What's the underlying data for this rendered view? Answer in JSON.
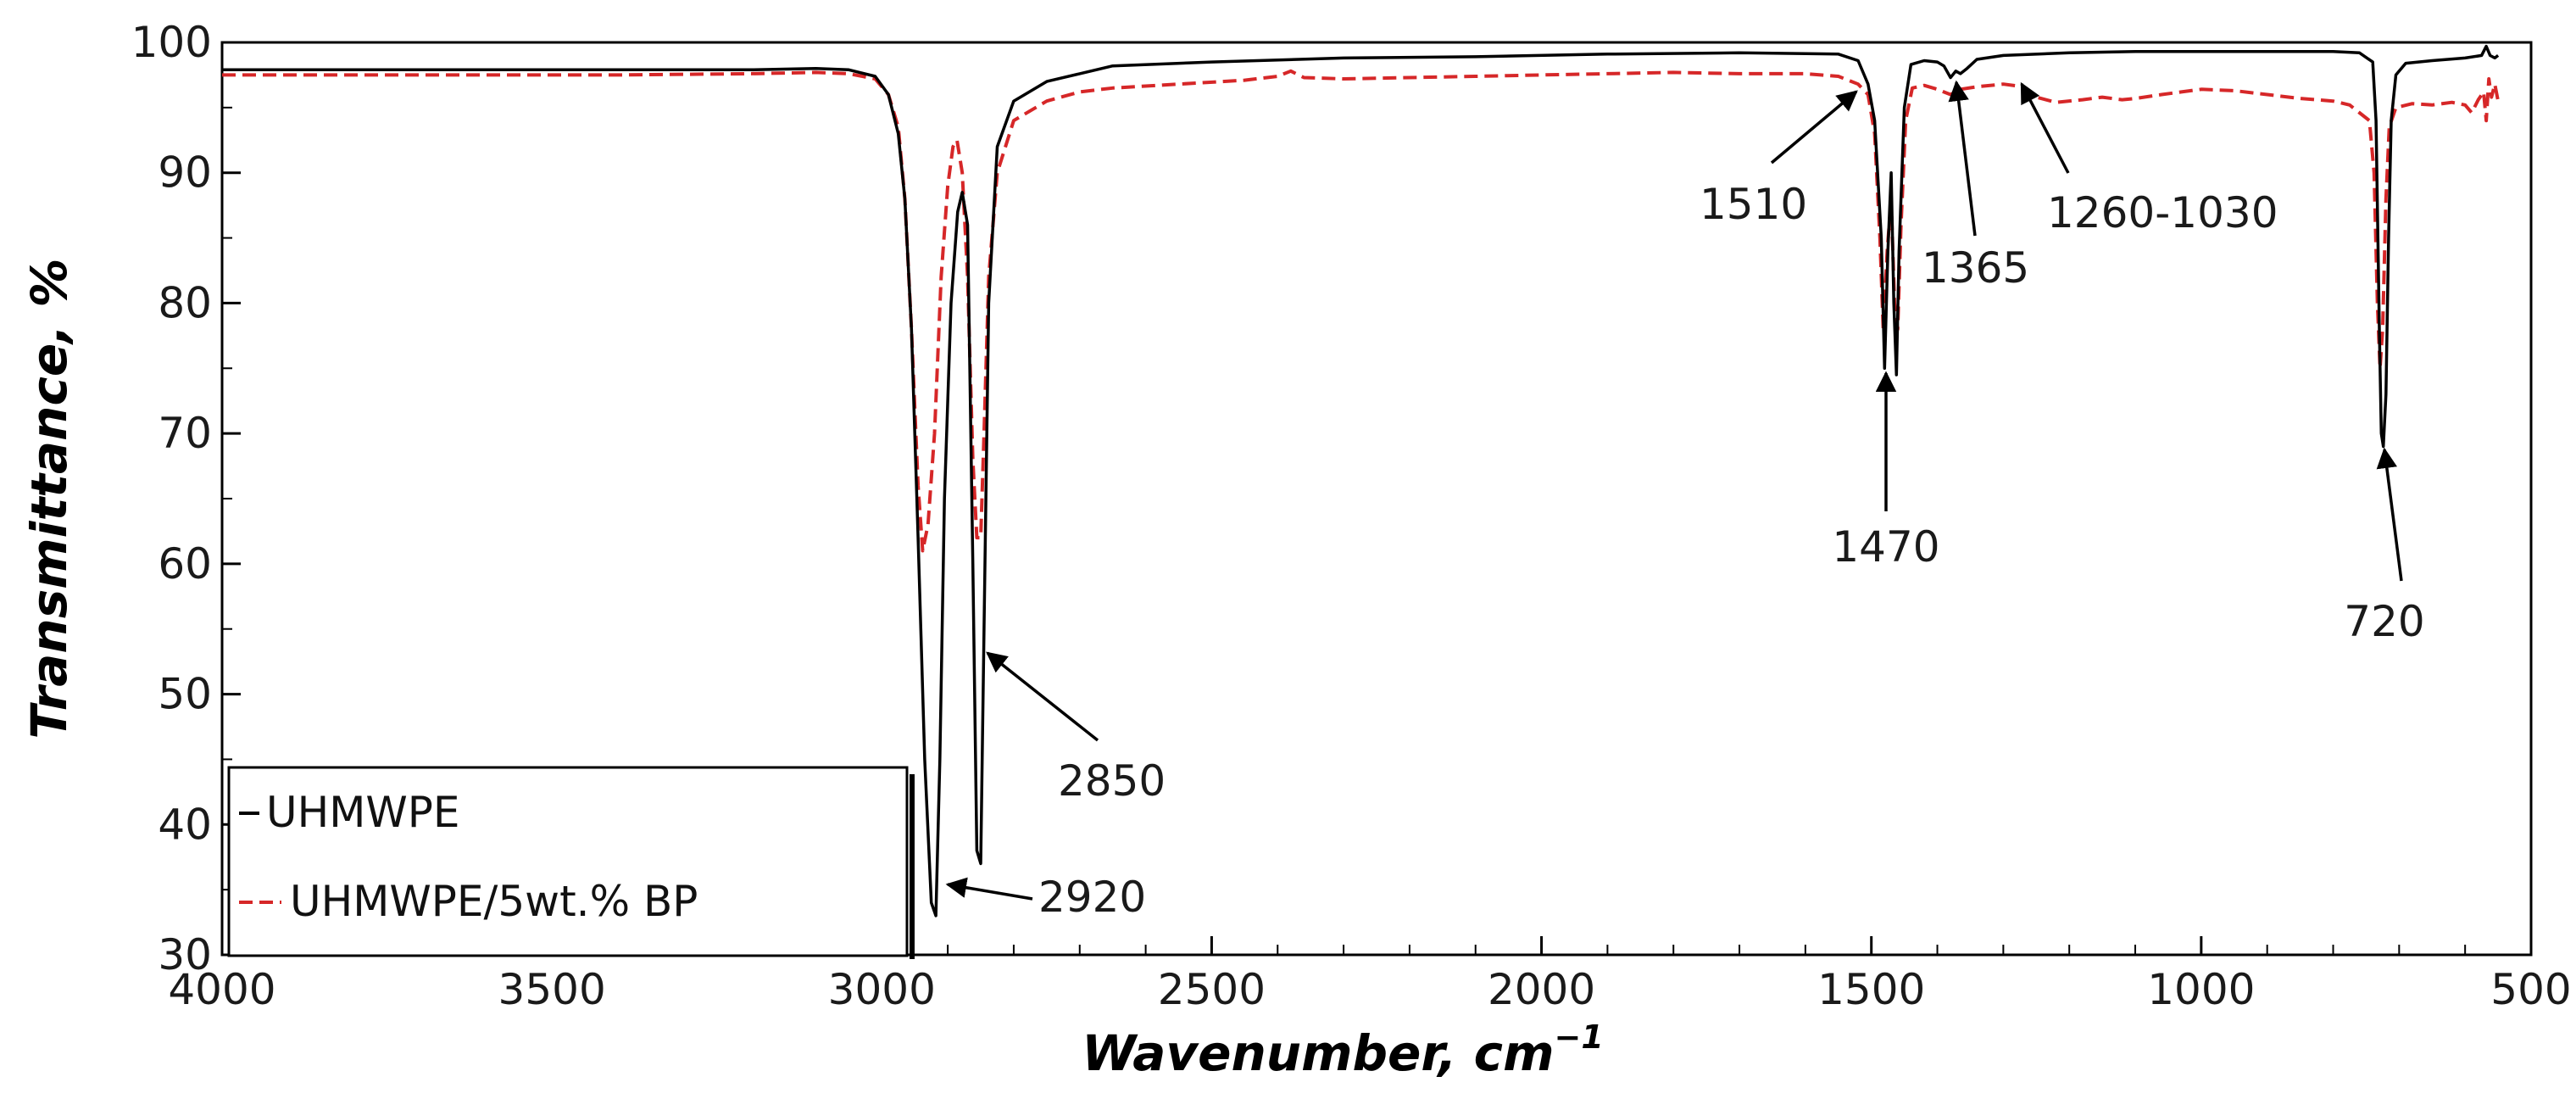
{
  "chart_data": {
    "type": "line",
    "xlabel": "Wavenumber, cm",
    "xlabel_sup": "−1",
    "ylabel": "Transmittance, %",
    "xlim": [
      4000,
      500
    ],
    "ylim": [
      30,
      100
    ],
    "x_reversed": true,
    "x_ticks": [
      4000,
      3500,
      3000,
      2500,
      2000,
      1500,
      1000,
      500
    ],
    "y_ticks": [
      30,
      40,
      50,
      60,
      70,
      80,
      90,
      100
    ],
    "grid": false,
    "legend_position": "bottom-left",
    "series": [
      {
        "name": "UHMWPE",
        "color": "#000000",
        "dash": "solid",
        "points": [
          [
            4000,
            97.9
          ],
          [
            3800,
            97.9
          ],
          [
            3600,
            97.9
          ],
          [
            3400,
            97.9
          ],
          [
            3200,
            97.9
          ],
          [
            3100,
            98.0
          ],
          [
            3050,
            97.9
          ],
          [
            3010,
            97.4
          ],
          [
            2990,
            96.0
          ],
          [
            2975,
            93.0
          ],
          [
            2965,
            88.0
          ],
          [
            2955,
            78.0
          ],
          [
            2945,
            62.0
          ],
          [
            2935,
            45.0
          ],
          [
            2925,
            34.0
          ],
          [
            2918,
            33.0
          ],
          [
            2912,
            45.0
          ],
          [
            2905,
            65.0
          ],
          [
            2895,
            80.0
          ],
          [
            2885,
            87.0
          ],
          [
            2878,
            88.5
          ],
          [
            2870,
            86.0
          ],
          [
            2862,
            60.0
          ],
          [
            2856,
            38.0
          ],
          [
            2850,
            37.0
          ],
          [
            2845,
            55.0
          ],
          [
            2838,
            80.0
          ],
          [
            2825,
            92.0
          ],
          [
            2800,
            95.5
          ],
          [
            2750,
            97.0
          ],
          [
            2700,
            97.6
          ],
          [
            2650,
            98.2
          ],
          [
            2500,
            98.5
          ],
          [
            2300,
            98.8
          ],
          [
            2100,
            98.9
          ],
          [
            1900,
            99.1
          ],
          [
            1700,
            99.2
          ],
          [
            1550,
            99.1
          ],
          [
            1520,
            98.6
          ],
          [
            1505,
            96.8
          ],
          [
            1495,
            94.0
          ],
          [
            1485,
            85.0
          ],
          [
            1480,
            75.0
          ],
          [
            1475,
            84.0
          ],
          [
            1470,
            90.0
          ],
          [
            1466,
            80.0
          ],
          [
            1462,
            74.5
          ],
          [
            1458,
            84.0
          ],
          [
            1450,
            95.0
          ],
          [
            1440,
            98.3
          ],
          [
            1420,
            98.6
          ],
          [
            1400,
            98.5
          ],
          [
            1390,
            98.2
          ],
          [
            1380,
            97.3
          ],
          [
            1372,
            97.8
          ],
          [
            1365,
            97.6
          ],
          [
            1355,
            98.0
          ],
          [
            1340,
            98.7
          ],
          [
            1300,
            99.0
          ],
          [
            1200,
            99.2
          ],
          [
            1100,
            99.3
          ],
          [
            1000,
            99.3
          ],
          [
            900,
            99.3
          ],
          [
            800,
            99.3
          ],
          [
            760,
            99.2
          ],
          [
            740,
            98.5
          ],
          [
            735,
            94.0
          ],
          [
            730,
            78.0
          ],
          [
            727,
            70.0
          ],
          [
            724,
            69.0
          ],
          [
            720,
            73.0
          ],
          [
            716,
            85.0
          ],
          [
            712,
            94.0
          ],
          [
            705,
            97.5
          ],
          [
            690,
            98.4
          ],
          [
            650,
            98.6
          ],
          [
            600,
            98.8
          ],
          [
            575,
            99.0
          ],
          [
            568,
            99.7
          ],
          [
            562,
            99.0
          ],
          [
            555,
            98.8
          ],
          [
            550,
            99.0
          ]
        ]
      },
      {
        "name": "UHMWPE/5wt.% BP",
        "color": "#d62728",
        "dash": "dashed",
        "points": [
          [
            4000,
            97.5
          ],
          [
            3800,
            97.5
          ],
          [
            3600,
            97.5
          ],
          [
            3400,
            97.5
          ],
          [
            3200,
            97.6
          ],
          [
            3100,
            97.7
          ],
          [
            3050,
            97.6
          ],
          [
            3010,
            97.2
          ],
          [
            2990,
            96.0
          ],
          [
            2975,
            93.5
          ],
          [
            2965,
            88.0
          ],
          [
            2955,
            78.0
          ],
          [
            2945,
            66.0
          ],
          [
            2938,
            61.0
          ],
          [
            2930,
            63.0
          ],
          [
            2920,
            70.0
          ],
          [
            2910,
            82.0
          ],
          [
            2900,
            89.0
          ],
          [
            2892,
            92.0
          ],
          [
            2886,
            92.5
          ],
          [
            2878,
            90.0
          ],
          [
            2870,
            82.0
          ],
          [
            2862,
            68.0
          ],
          [
            2856,
            62.0
          ],
          [
            2850,
            62.0
          ],
          [
            2845,
            70.0
          ],
          [
            2838,
            82.0
          ],
          [
            2825,
            90.0
          ],
          [
            2800,
            94.0
          ],
          [
            2750,
            95.5
          ],
          [
            2700,
            96.2
          ],
          [
            2650,
            96.5
          ],
          [
            2550,
            96.8
          ],
          [
            2450,
            97.1
          ],
          [
            2400,
            97.4
          ],
          [
            2380,
            97.8
          ],
          [
            2360,
            97.3
          ],
          [
            2300,
            97.2
          ],
          [
            2200,
            97.3
          ],
          [
            2100,
            97.4
          ],
          [
            2000,
            97.5
          ],
          [
            1900,
            97.6
          ],
          [
            1800,
            97.7
          ],
          [
            1700,
            97.6
          ],
          [
            1600,
            97.6
          ],
          [
            1550,
            97.4
          ],
          [
            1520,
            96.8
          ],
          [
            1505,
            96.0
          ],
          [
            1495,
            93.0
          ],
          [
            1487,
            85.0
          ],
          [
            1482,
            78.0
          ],
          [
            1476,
            84.0
          ],
          [
            1470,
            88.0
          ],
          [
            1465,
            80.0
          ],
          [
            1460,
            78.0
          ],
          [
            1455,
            86.0
          ],
          [
            1448,
            94.0
          ],
          [
            1438,
            96.5
          ],
          [
            1420,
            96.7
          ],
          [
            1400,
            96.4
          ],
          [
            1380,
            96.0
          ],
          [
            1365,
            96.4
          ],
          [
            1340,
            96.6
          ],
          [
            1300,
            96.8
          ],
          [
            1270,
            96.6
          ],
          [
            1250,
            95.8
          ],
          [
            1220,
            95.4
          ],
          [
            1180,
            95.6
          ],
          [
            1150,
            95.8
          ],
          [
            1120,
            95.6
          ],
          [
            1100,
            95.7
          ],
          [
            1060,
            96.0
          ],
          [
            1030,
            96.2
          ],
          [
            1000,
            96.4
          ],
          [
            950,
            96.3
          ],
          [
            900,
            96.0
          ],
          [
            850,
            95.7
          ],
          [
            800,
            95.5
          ],
          [
            775,
            95.2
          ],
          [
            760,
            94.6
          ],
          [
            745,
            94.0
          ],
          [
            738,
            90.0
          ],
          [
            733,
            80.0
          ],
          [
            729,
            75.0
          ],
          [
            725,
            78.0
          ],
          [
            720,
            88.0
          ],
          [
            715,
            93.5
          ],
          [
            705,
            95.0
          ],
          [
            680,
            95.3
          ],
          [
            650,
            95.2
          ],
          [
            620,
            95.4
          ],
          [
            600,
            95.2
          ],
          [
            590,
            94.6
          ],
          [
            580,
            95.6
          ],
          [
            572,
            96.2
          ],
          [
            568,
            94.0
          ],
          [
            564,
            97.2
          ],
          [
            560,
            95.8
          ],
          [
            555,
            96.8
          ],
          [
            550,
            95.5
          ]
        ]
      }
    ],
    "annotations": [
      {
        "text": "2920"
      },
      {
        "text": "2850"
      },
      {
        "text": "1510"
      },
      {
        "text": "1470"
      },
      {
        "text": "1365"
      },
      {
        "text": "1260-1030"
      },
      {
        "text": "720"
      }
    ]
  }
}
